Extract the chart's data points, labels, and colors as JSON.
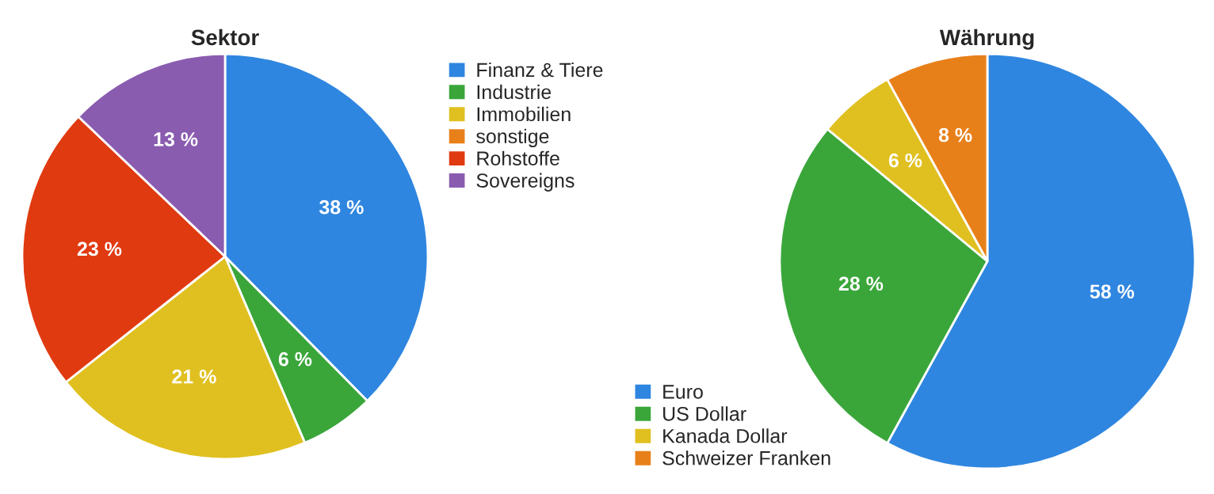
{
  "chart_data": [
    {
      "type": "pie",
      "title": "Sektor",
      "categories": [
        "Finanz & Tiere",
        "Industrie",
        "Immobilien",
        "sonstige",
        "Rohstoffe",
        "Sovereigns"
      ],
      "values": [
        38,
        6,
        21,
        0,
        23,
        13
      ],
      "value_labels": [
        "38 %",
        "6 %",
        "21 %",
        null,
        "23 %",
        "13 %"
      ],
      "colors": [
        "#2f86e0",
        "#3aa63a",
        "#e0c020",
        "#e8801a",
        "#e03a10",
        "#8a5cb0"
      ],
      "legend": "right"
    },
    {
      "type": "pie",
      "title": "Währung",
      "categories": [
        "Euro",
        "US Dollar",
        "Kanada Dollar",
        "Schweizer Franken"
      ],
      "values": [
        58,
        28,
        6,
        8
      ],
      "value_labels": [
        "58 %",
        "28 %",
        "6 %",
        "8 %"
      ],
      "colors": [
        "#2f86e0",
        "#3aa63a",
        "#e0c020",
        "#e8801a"
      ],
      "legend": "bottom left"
    }
  ]
}
